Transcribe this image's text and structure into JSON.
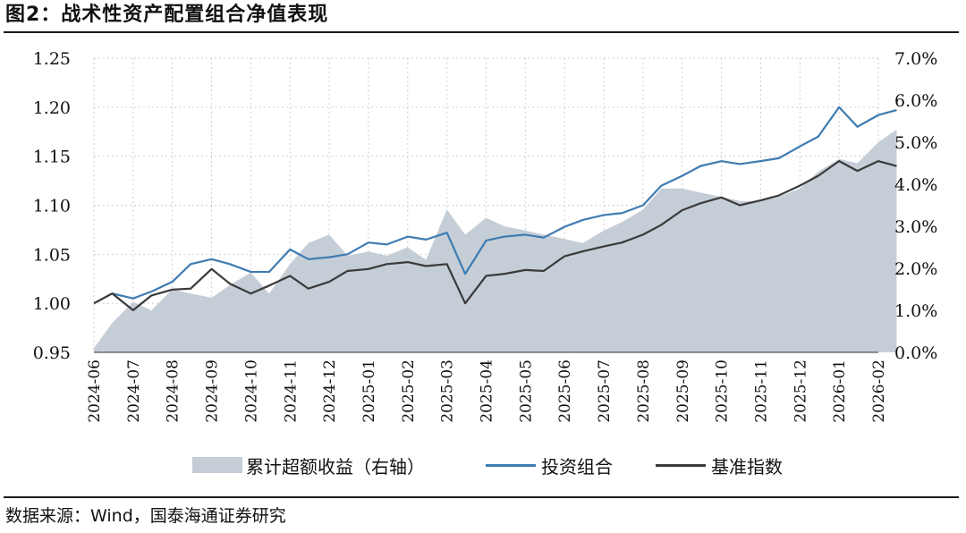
{
  "title": "图2：战术性资产配置组合净值表现",
  "source": "数据来源：Wind，国泰海通证券研究",
  "chart_data": {
    "type": "line",
    "title": "图2：战术性资产配置组合净值表现",
    "grid": true,
    "legend_position": "bottom",
    "x_ticks": [
      "2024-06",
      "2024-07",
      "2024-08",
      "2024-09",
      "2024-10",
      "2024-11",
      "2024-12",
      "2025-01",
      "2025-02",
      "2025-03",
      "2025-04",
      "2025-05",
      "2025-06",
      "2025-07",
      "2025-08",
      "2025-09",
      "2025-10",
      "2025-11",
      "2025-12",
      "2026-01",
      "2026-02"
    ],
    "y_left": {
      "ticks": [
        "0.95",
        "1.00",
        "1.05",
        "1.10",
        "1.15",
        "1.20",
        "1.25"
      ],
      "range": [
        0.95,
        1.25
      ]
    },
    "y_right": {
      "ticks": [
        "0.0%",
        "1.0%",
        "2.0%",
        "3.0%",
        "4.0%",
        "5.0%",
        "6.0%",
        "7.0%"
      ],
      "range": [
        0,
        7
      ]
    },
    "x": [
      "2024-06-01",
      "2024-06-15",
      "2024-07-01",
      "2024-07-15",
      "2024-08-01",
      "2024-08-15",
      "2024-09-01",
      "2024-09-15",
      "2024-10-01",
      "2024-10-15",
      "2024-11-01",
      "2024-11-15",
      "2024-12-01",
      "2024-12-15",
      "2025-01-01",
      "2025-01-15",
      "2025-02-01",
      "2025-02-15",
      "2025-03-01",
      "2025-03-15",
      "2025-04-01",
      "2025-04-15",
      "2025-05-01",
      "2025-05-15",
      "2025-06-01",
      "2025-06-15",
      "2025-07-01",
      "2025-07-15",
      "2025-08-01",
      "2025-08-15",
      "2025-09-01",
      "2025-09-15",
      "2025-10-01",
      "2025-10-15",
      "2025-11-01",
      "2025-11-15",
      "2025-12-01",
      "2025-12-15",
      "2026-01-01",
      "2026-01-15",
      "2026-02-01",
      "2026-02-15"
    ],
    "series": [
      {
        "name": "累计超额收益（右轴）",
        "type": "area",
        "axis": "right",
        "color": "#c5ced6",
        "values": [
          0.1,
          0.7,
          1.2,
          1.0,
          1.5,
          1.4,
          1.3,
          1.6,
          1.9,
          1.4,
          2.1,
          2.6,
          2.8,
          2.3,
          2.4,
          2.3,
          2.5,
          2.2,
          3.4,
          2.8,
          3.2,
          3.0,
          2.9,
          2.8,
          2.7,
          2.6,
          2.9,
          3.1,
          3.4,
          3.9,
          3.9,
          3.8,
          3.7,
          3.6,
          3.6,
          3.7,
          3.9,
          4.3,
          4.6,
          4.5,
          5.0,
          5.3
        ]
      },
      {
        "name": "投资组合",
        "type": "line",
        "axis": "left",
        "color": "#3e7cb1",
        "values": [
          1.0,
          1.01,
          1.005,
          1.012,
          1.022,
          1.04,
          1.045,
          1.04,
          1.032,
          1.032,
          1.055,
          1.045,
          1.047,
          1.05,
          1.062,
          1.06,
          1.068,
          1.065,
          1.072,
          1.03,
          1.064,
          1.068,
          1.07,
          1.067,
          1.078,
          1.085,
          1.09,
          1.092,
          1.1,
          1.12,
          1.13,
          1.14,
          1.145,
          1.142,
          1.145,
          1.148,
          1.16,
          1.17,
          1.2,
          1.18,
          1.192,
          1.197
        ]
      },
      {
        "name": "基准指数",
        "type": "line",
        "axis": "left",
        "color": "#3a3a3a",
        "values": [
          1.0,
          1.01,
          0.993,
          1.008,
          1.014,
          1.015,
          1.035,
          1.02,
          1.01,
          1.018,
          1.028,
          1.015,
          1.022,
          1.033,
          1.035,
          1.04,
          1.042,
          1.038,
          1.04,
          1.0,
          1.028,
          1.03,
          1.034,
          1.033,
          1.048,
          1.053,
          1.058,
          1.062,
          1.07,
          1.08,
          1.095,
          1.102,
          1.108,
          1.1,
          1.105,
          1.11,
          1.12,
          1.13,
          1.145,
          1.135,
          1.145,
          1.14
        ]
      }
    ]
  }
}
